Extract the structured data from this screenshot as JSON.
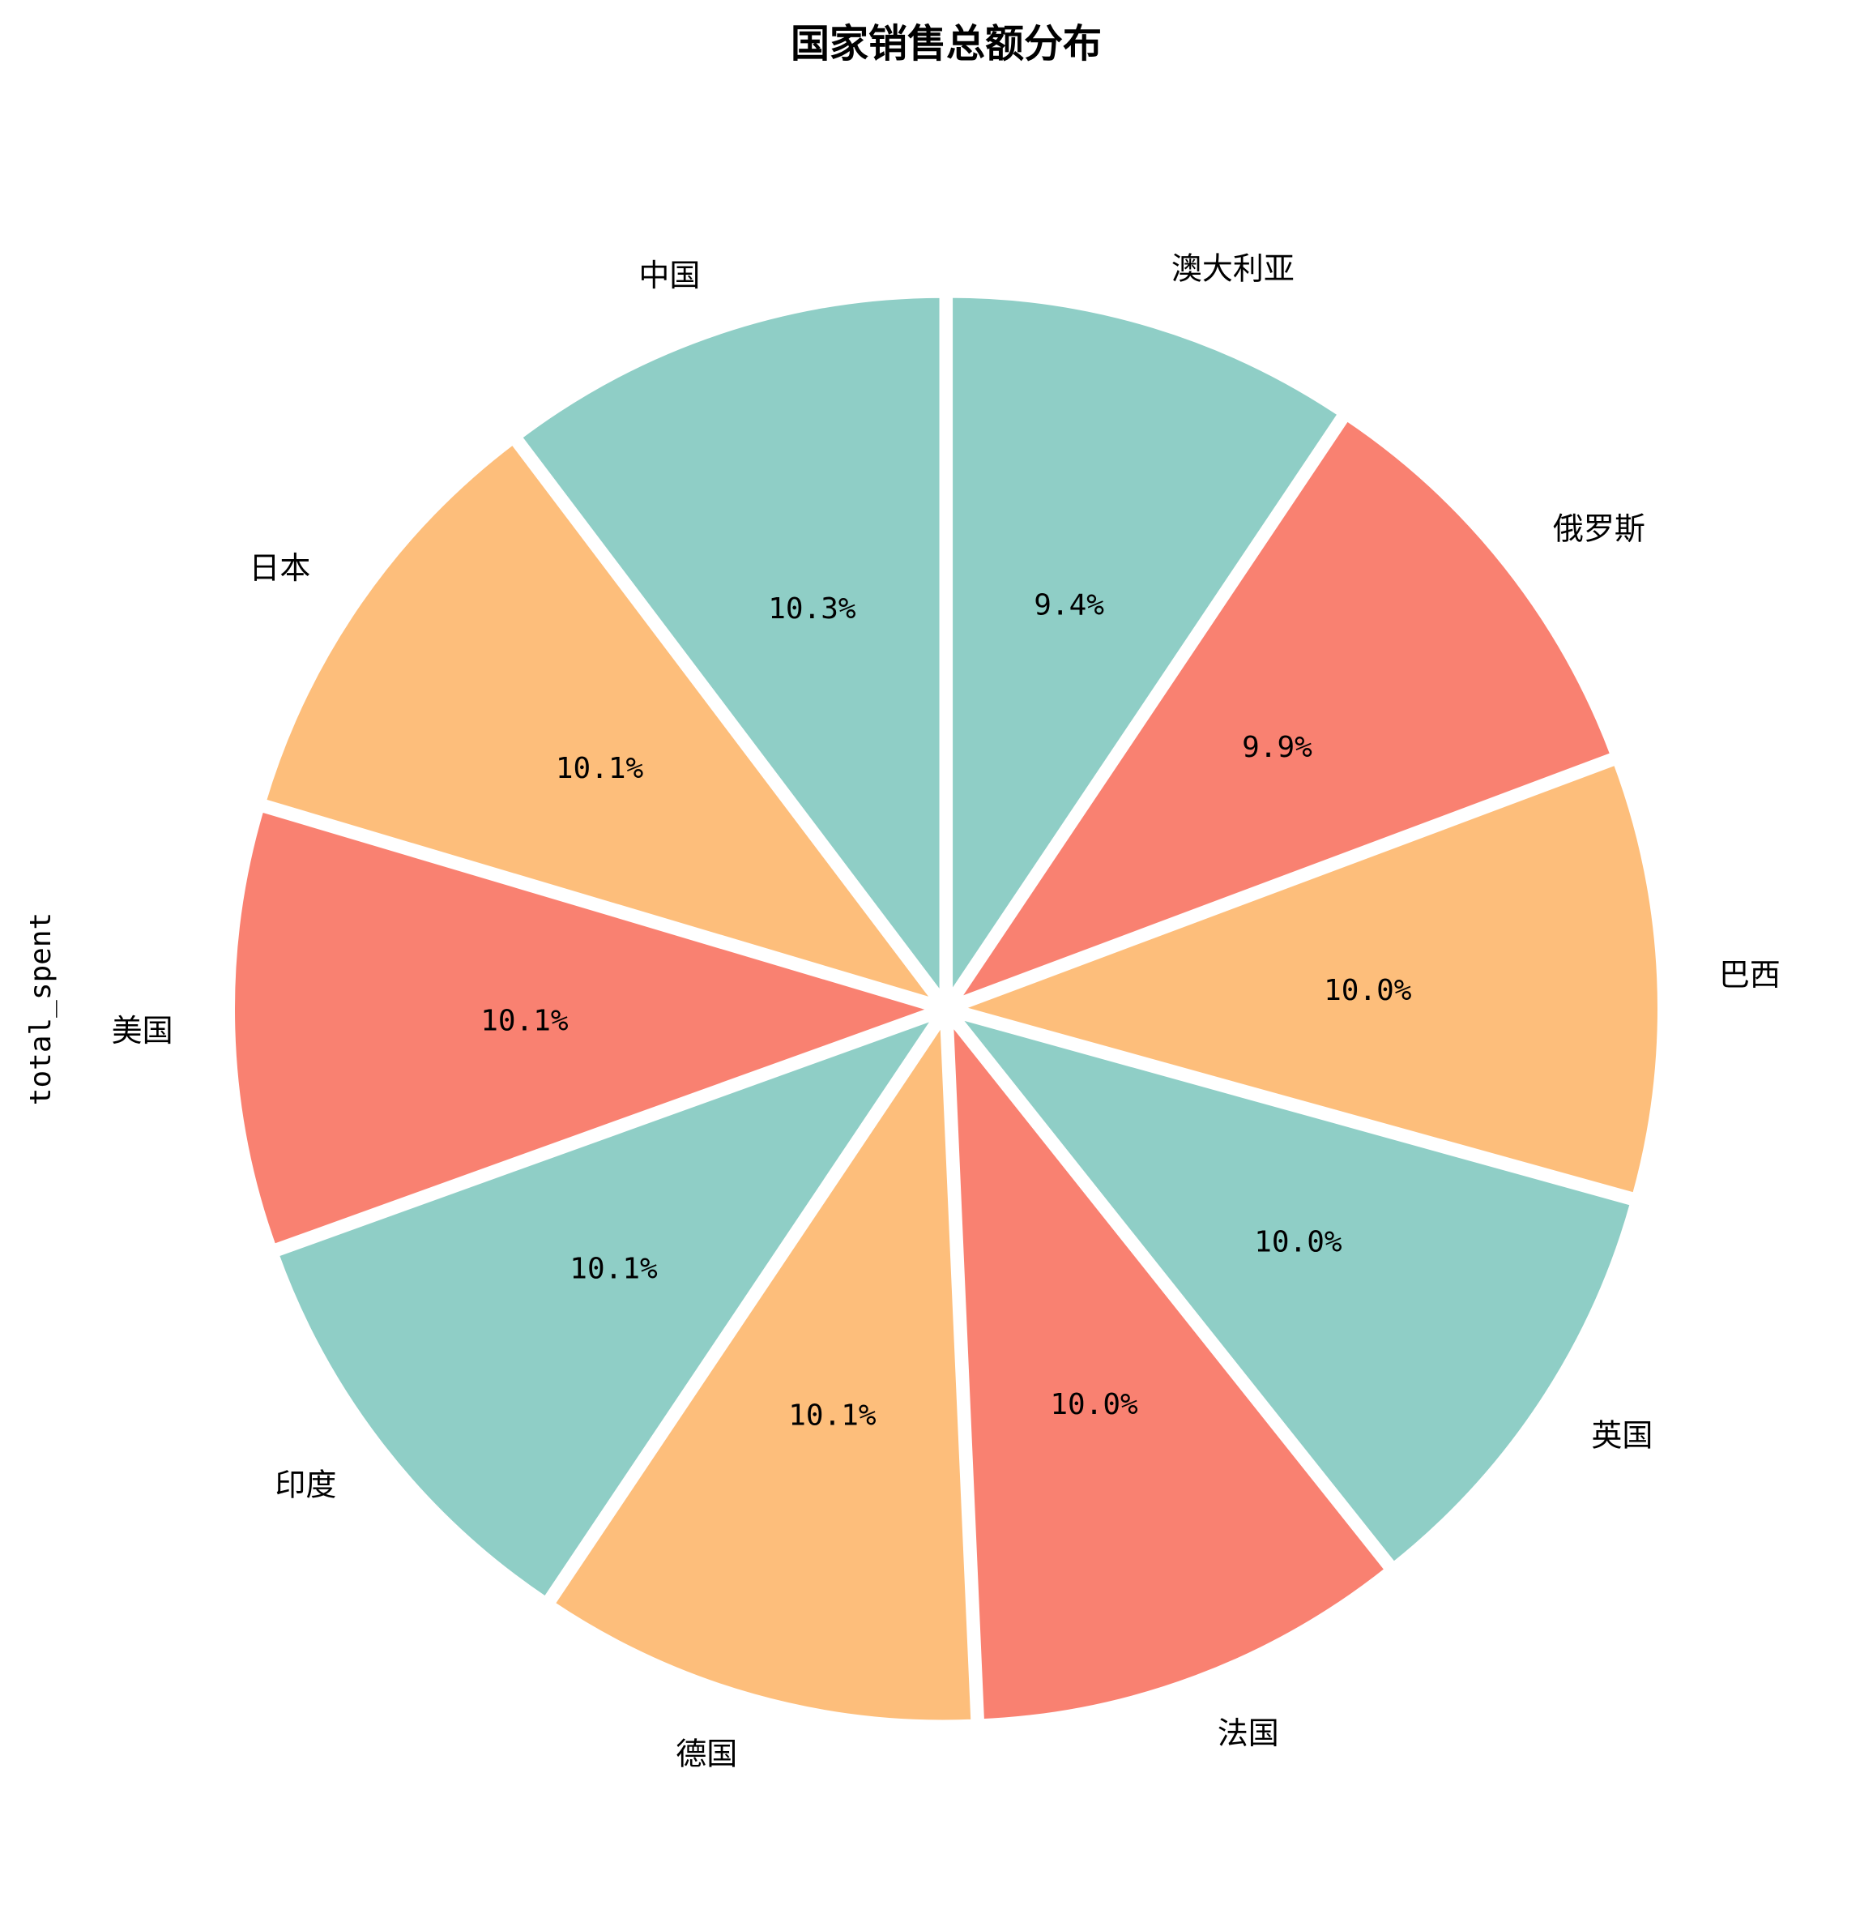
{
  "chart_data": {
    "type": "pie",
    "title": "国家销售总额分布",
    "ylabel": "total_spent",
    "categories": [
      "中国",
      "日本",
      "美国",
      "印度",
      "德国",
      "法国",
      "英国",
      "巴西",
      "俄罗斯",
      "澳大利亚"
    ],
    "values": [
      10.3,
      10.1,
      10.1,
      10.1,
      10.1,
      10.0,
      10.0,
      10.0,
      9.9,
      9.4
    ],
    "percent_labels": [
      "10.3%",
      "10.1%",
      "10.1%",
      "10.1%",
      "10.1%",
      "10.0%",
      "10.0%",
      "10.0%",
      "9.9%",
      "9.4%"
    ],
    "start_angle_deg": 90,
    "direction": "counterclockwise",
    "colors": [
      "#8fcec6",
      "#fdbe7b",
      "#f98171",
      "#8fcec6",
      "#fdbe7b",
      "#f98171",
      "#8fcec6",
      "#fdbe7b",
      "#f98171",
      "#8fcec6"
    ],
    "edge_color": "#ffffff",
    "legend": "none"
  }
}
